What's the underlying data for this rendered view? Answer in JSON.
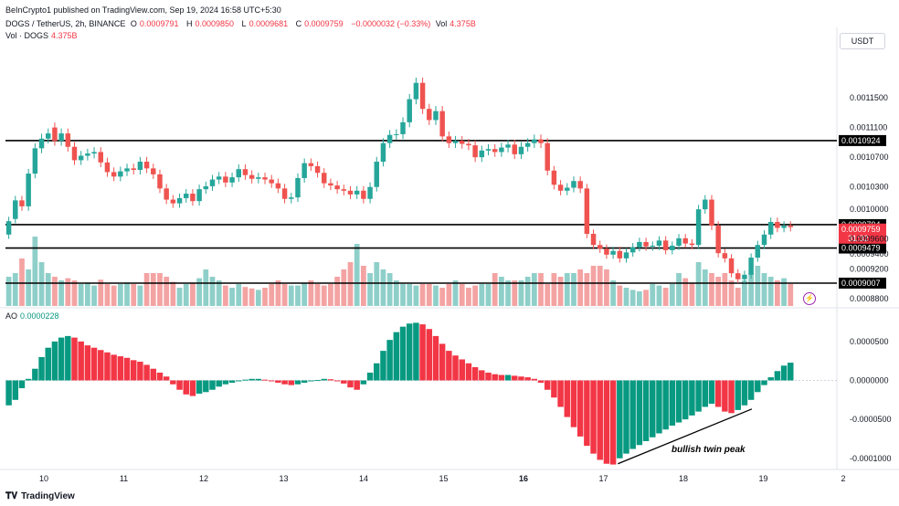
{
  "header": {
    "publisher": "BeInCrypto1 published on TradingView.com, Sep 19, 2024 16:58 UTC+5:30",
    "symbol": "DOGS / TetherUS, 2h, BINANCE",
    "o_label": "O",
    "o_value": "0.0009791",
    "h_label": "H",
    "h_value": "0.0009850",
    "l_label": "L",
    "l_value": "0.0009681",
    "c_label": "C",
    "c_value": "0.0009759",
    "change": "−0.0000032 (−0.33%)",
    "vol_label": "Vol",
    "vol_value": "4.375B",
    "vol_row_label": "Vol · DOGS",
    "vol_row_value": "4.375B",
    "currency": "USDT"
  },
  "ao": {
    "label": "AO",
    "value": "0.0000228"
  },
  "footer": {
    "brand": "TradingView"
  },
  "colors": {
    "up": "#26a69a",
    "down": "#ef5350",
    "vol_up": "#8fcfc9",
    "vol_down": "#f4a3a3",
    "ao_up": "#089981",
    "ao_down": "#f23645"
  },
  "chart_data": {
    "type": "candlestick",
    "x_ticks": [
      "10",
      "11",
      "12",
      "13",
      "14",
      "15",
      "16",
      "17",
      "18",
      "19",
      "2"
    ],
    "price_ticks": [
      "0.0011500",
      "0.0011100",
      "0.0010700",
      "0.0010300",
      "0.0010000",
      "0.0009600",
      "0.0009400",
      "0.0009200",
      "0.0008800"
    ],
    "ylim": [
      0.00087,
      0.00122
    ],
    "horizontal_levels": [
      {
        "value": 0.0010924,
        "label": "0.0010924"
      },
      {
        "value": 0.0009794,
        "label": "0.0009794"
      },
      {
        "value": 0.0009479,
        "label": "0.0009479"
      },
      {
        "value": 0.0009007,
        "label": "0.0009007"
      }
    ],
    "current_price": {
      "value": 0.0009759,
      "label": "0.0009759",
      "countdown": "31:32"
    },
    "candles_close": [
      0.000984,
      0.001012,
      0.001004,
      0.001048,
      0.001082,
      0.001095,
      0.001102,
      0.001092,
      0.001102,
      0.001084,
      0.001066,
      0.001072,
      0.001075,
      0.001077,
      0.001063,
      0.00105,
      0.001044,
      0.001051,
      0.001055,
      0.001053,
      0.001064,
      0.001055,
      0.001047,
      0.001028,
      0.001013,
      0.001008,
      0.001015,
      0.001021,
      0.001011,
      0.001027,
      0.001031,
      0.00104,
      0.001044,
      0.001036,
      0.001043,
      0.001054,
      0.001046,
      0.001041,
      0.001043,
      0.00104,
      0.001035,
      0.001028,
      0.001014,
      0.001016,
      0.001042,
      0.001062,
      0.001058,
      0.001049,
      0.001035,
      0.001032,
      0.001027,
      0.001025,
      0.00102,
      0.001025,
      0.001014,
      0.00103,
      0.001064,
      0.001089,
      0.0011,
      0.001101,
      0.001117,
      0.001148,
      0.00117,
      0.001135,
      0.00112,
      0.001132,
      0.001098,
      0.001089,
      0.001092,
      0.001088,
      0.001086,
      0.00107,
      0.001079,
      0.001081,
      0.001077,
      0.001083,
      0.001087,
      0.001074,
      0.001084,
      0.001089,
      0.001094,
      0.001089,
      0.001052,
      0.001033,
      0.001025,
      0.001029,
      0.001038,
      0.001028,
      0.000967,
      0.000952,
      0.000947,
      0.000939,
      0.000944,
      0.000934,
      0.000942,
      0.000949,
      0.000956,
      0.00095,
      0.000951,
      0.000958,
      0.000945,
      0.000951,
      0.000961,
      0.000954,
      0.000952,
      0.001,
      0.001013,
      0.000978,
      0.000941,
      0.000934,
      0.000914,
      0.000906,
      0.000912,
      0.000935,
      0.000952,
      0.000966,
      0.000983,
      0.000975,
      0.000978,
      0.000976
    ],
    "candles_open": [
      0.000966,
      0.000987,
      0.001012,
      0.001004,
      0.001048,
      0.001082,
      0.001095,
      0.00111,
      0.001092,
      0.001102,
      0.001084,
      0.001066,
      0.001072,
      0.001075,
      0.001077,
      0.001063,
      0.00105,
      0.001044,
      0.001051,
      0.001055,
      0.001053,
      0.001064,
      0.001055,
      0.001047,
      0.001028,
      0.001013,
      0.001008,
      0.001015,
      0.001021,
      0.001011,
      0.001027,
      0.001031,
      0.00104,
      0.001044,
      0.001036,
      0.001043,
      0.001054,
      0.001046,
      0.001041,
      0.001043,
      0.00104,
      0.001035,
      0.001028,
      0.001014,
      0.001016,
      0.001042,
      0.001062,
      0.001058,
      0.001049,
      0.001035,
      0.001032,
      0.001027,
      0.001025,
      0.00102,
      0.001025,
      0.001014,
      0.00103,
      0.001064,
      0.001089,
      0.0011,
      0.001101,
      0.001117,
      0.001148,
      0.00117,
      0.001135,
      0.00112,
      0.001132,
      0.001098,
      0.001089,
      0.001092,
      0.001088,
      0.001086,
      0.00107,
      0.001079,
      0.001081,
      0.001077,
      0.001083,
      0.001087,
      0.001074,
      0.001084,
      0.001089,
      0.001094,
      0.001089,
      0.001052,
      0.001033,
      0.001025,
      0.001029,
      0.001038,
      0.001028,
      0.000967,
      0.000952,
      0.000947,
      0.000939,
      0.000944,
      0.000934,
      0.000942,
      0.000949,
      0.000956,
      0.00095,
      0.000951,
      0.000958,
      0.000945,
      0.000951,
      0.000961,
      0.000954,
      0.000952,
      0.001,
      0.001013,
      0.000978,
      0.000941,
      0.000934,
      0.000914,
      0.000906,
      0.000912,
      0.000935,
      0.000952,
      0.000966,
      0.000983,
      0.000975,
      0.000978
    ],
    "volume": [
      0.4,
      0.45,
      0.65,
      0.5,
      0.95,
      0.6,
      0.45,
      0.4,
      0.35,
      0.38,
      0.35,
      0.3,
      0.32,
      0.28,
      0.36,
      0.3,
      0.28,
      0.3,
      0.32,
      0.3,
      0.28,
      0.45,
      0.45,
      0.45,
      0.4,
      0.33,
      0.25,
      0.3,
      0.32,
      0.38,
      0.5,
      0.4,
      0.35,
      0.28,
      0.25,
      0.3,
      0.26,
      0.24,
      0.22,
      0.25,
      0.3,
      0.35,
      0.3,
      0.28,
      0.28,
      0.32,
      0.35,
      0.3,
      0.28,
      0.3,
      0.4,
      0.5,
      0.6,
      0.85,
      0.55,
      0.45,
      0.6,
      0.5,
      0.45,
      0.35,
      0.3,
      0.3,
      0.28,
      0.3,
      0.3,
      0.28,
      0.25,
      0.3,
      0.35,
      0.3,
      0.25,
      0.28,
      0.3,
      0.3,
      0.45,
      0.4,
      0.35,
      0.35,
      0.35,
      0.4,
      0.45,
      0.45,
      0.3,
      0.45,
      0.4,
      0.45,
      0.45,
      0.5,
      0.45,
      0.55,
      0.55,
      0.5,
      0.35,
      0.28,
      0.25,
      0.22,
      0.2,
      0.22,
      0.3,
      0.28,
      0.25,
      0.3,
      0.45,
      0.38,
      0.32,
      0.6,
      0.5,
      0.45,
      0.4,
      0.45,
      0.35,
      0.25,
      0.35,
      0.45,
      0.55,
      0.45,
      0.4,
      0.35,
      0.38,
      0.3
    ],
    "ao_values": [
      -3.2e-05,
      -2.5e-05,
      -1e-05,
      2e-06,
      1.5e-05,
      3e-05,
      4.2e-05,
      5e-05,
      5.5e-05,
      5.7e-05,
      5.5e-05,
      5e-05,
      4.5e-05,
      4.2e-05,
      3.9e-05,
      3.6e-05,
      3.3e-05,
      3.1e-05,
      2.9e-05,
      2.6e-05,
      2.4e-05,
      2e-05,
      1.5e-05,
      1e-05,
      5e-06,
      -5e-06,
      -1.2e-05,
      -1.8e-05,
      -2e-05,
      -1.7e-05,
      -1.5e-05,
      -1.2e-05,
      -8e-06,
      -5e-06,
      -3e-06,
      -1e-06,
      1e-06,
      2e-06,
      2e-06,
      1e-06,
      -1e-06,
      -3e-06,
      -5e-06,
      -6e-06,
      -5e-06,
      -3e-06,
      -1e-06,
      5e-07,
      2e-06,
      1.5e-06,
      -1e-06,
      -4e-06,
      -9e-06,
      -1.2e-05,
      -5e-06,
      1e-05,
      2.2e-05,
      3.8e-05,
      5.2e-05,
      6.2e-05,
      6.9e-05,
      7.3e-05,
      7.4e-05,
      7.2e-05,
      6.6e-05,
      5.7e-05,
      4.7e-05,
      3.8e-05,
      3.2e-05,
      2.7e-05,
      2.2e-05,
      1.7e-05,
      1.3e-05,
      1e-05,
      8e-06,
      7e-06,
      7e-06,
      6e-06,
      5e-06,
      4e-06,
      2e-06,
      -3e-06,
      -1.2e-05,
      -2.2e-05,
      -3.4e-05,
      -4.7e-05,
      -6e-05,
      -7.2e-05,
      -8.4e-05,
      -9.4e-05,
      -0.000102,
      -0.000107,
      -0.000108,
      -0.0001,
      -9.4e-05,
      -8.8e-05,
      -8.3e-05,
      -7.8e-05,
      -7.3e-05,
      -6.8e-05,
      -6.3e-05,
      -5.8e-05,
      -5.4e-05,
      -5e-05,
      -4.5e-05,
      -4e-05,
      -3.4e-05,
      -3e-05,
      -3.4e-05,
      -4e-05,
      -4.2e-05,
      -3.8e-05,
      -3.2e-05,
      -2.5e-05,
      -1.5e-05,
      -6e-06,
      4e-06,
      1.2e-05,
      1.9e-05,
      2.28e-05
    ],
    "ao_ticks": [
      "0.0000500",
      "0.0000000",
      "-0.0000500",
      "-0.0001000"
    ],
    "ao_ylim": [
      -0.000112,
      7.8e-05
    ],
    "annotation": "bullish twin peak"
  }
}
